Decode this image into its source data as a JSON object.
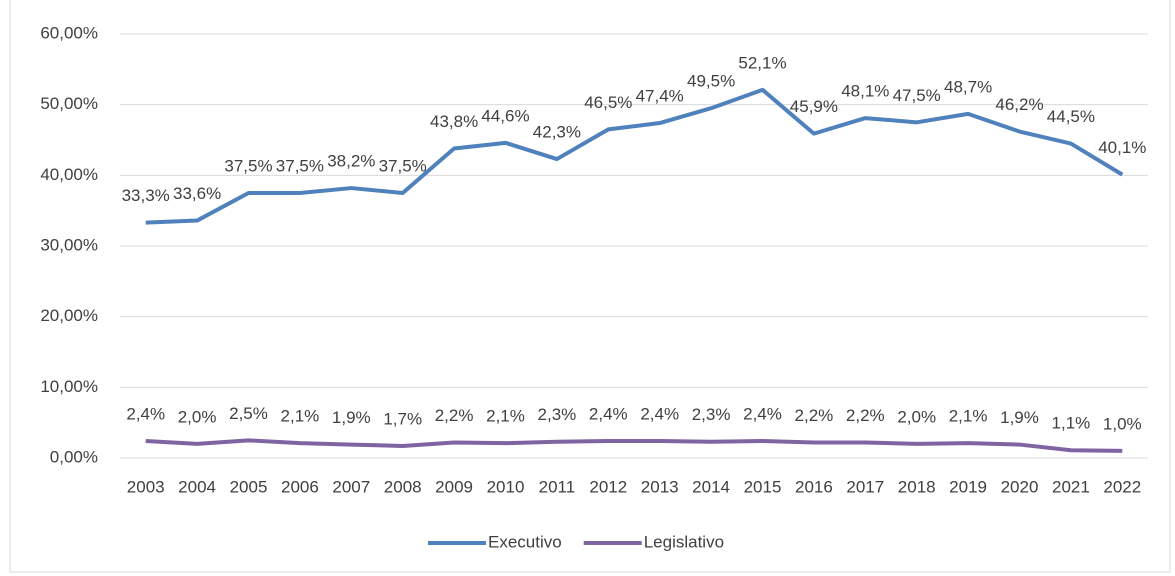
{
  "chart_data": {
    "type": "line",
    "categories": [
      "2003",
      "2004",
      "2005",
      "2006",
      "2007",
      "2008",
      "2009",
      "2010",
      "2011",
      "2012",
      "2013",
      "2014",
      "2015",
      "2016",
      "2017",
      "2018",
      "2019",
      "2020",
      "2021",
      "2022"
    ],
    "series": [
      {
        "name": "Executivo",
        "color": "#4f81bd",
        "values": [
          33.3,
          33.6,
          37.5,
          37.5,
          38.2,
          37.5,
          43.8,
          44.6,
          42.3,
          46.5,
          47.4,
          49.5,
          52.1,
          45.9,
          48.1,
          47.5,
          48.7,
          46.2,
          44.5,
          40.1
        ],
        "value_labels": [
          "33,3%",
          "33,6%",
          "37,5%",
          "37,5%",
          "38,2%",
          "37,5%",
          "43,8%",
          "44,6%",
          "42,3%",
          "46,5%",
          "47,4%",
          "49,5%",
          "52,1%",
          "45,9%",
          "48,1%",
          "47,5%",
          "48,7%",
          "46,2%",
          "44,5%",
          "40,1%"
        ]
      },
      {
        "name": "Legislativo",
        "color": "#8064a2",
        "values": [
          2.4,
          2.0,
          2.5,
          2.1,
          1.9,
          1.7,
          2.2,
          2.1,
          2.3,
          2.4,
          2.4,
          2.3,
          2.4,
          2.2,
          2.2,
          2.0,
          2.1,
          1.9,
          1.1,
          1.0
        ],
        "value_labels": [
          "2,4%",
          "2,0%",
          "2,5%",
          "2,1%",
          "1,9%",
          "1,7%",
          "2,2%",
          "2,1%",
          "2,3%",
          "2,4%",
          "2,4%",
          "2,3%",
          "2,4%",
          "2,2%",
          "2,2%",
          "2,0%",
          "2,1%",
          "1,9%",
          "1,1%",
          "1,0%"
        ]
      }
    ],
    "ylim": [
      0,
      60
    ],
    "yticks": [
      {
        "value": 0,
        "label": "0,00%"
      },
      {
        "value": 10,
        "label": "10,00%"
      },
      {
        "value": 20,
        "label": "20,00%"
      },
      {
        "value": 30,
        "label": "30,00%"
      },
      {
        "value": 40,
        "label": "40,00%"
      },
      {
        "value": 50,
        "label": "50,00%"
      },
      {
        "value": 60,
        "label": "60,00%"
      }
    ],
    "grid": true,
    "legend": "bottom"
  }
}
